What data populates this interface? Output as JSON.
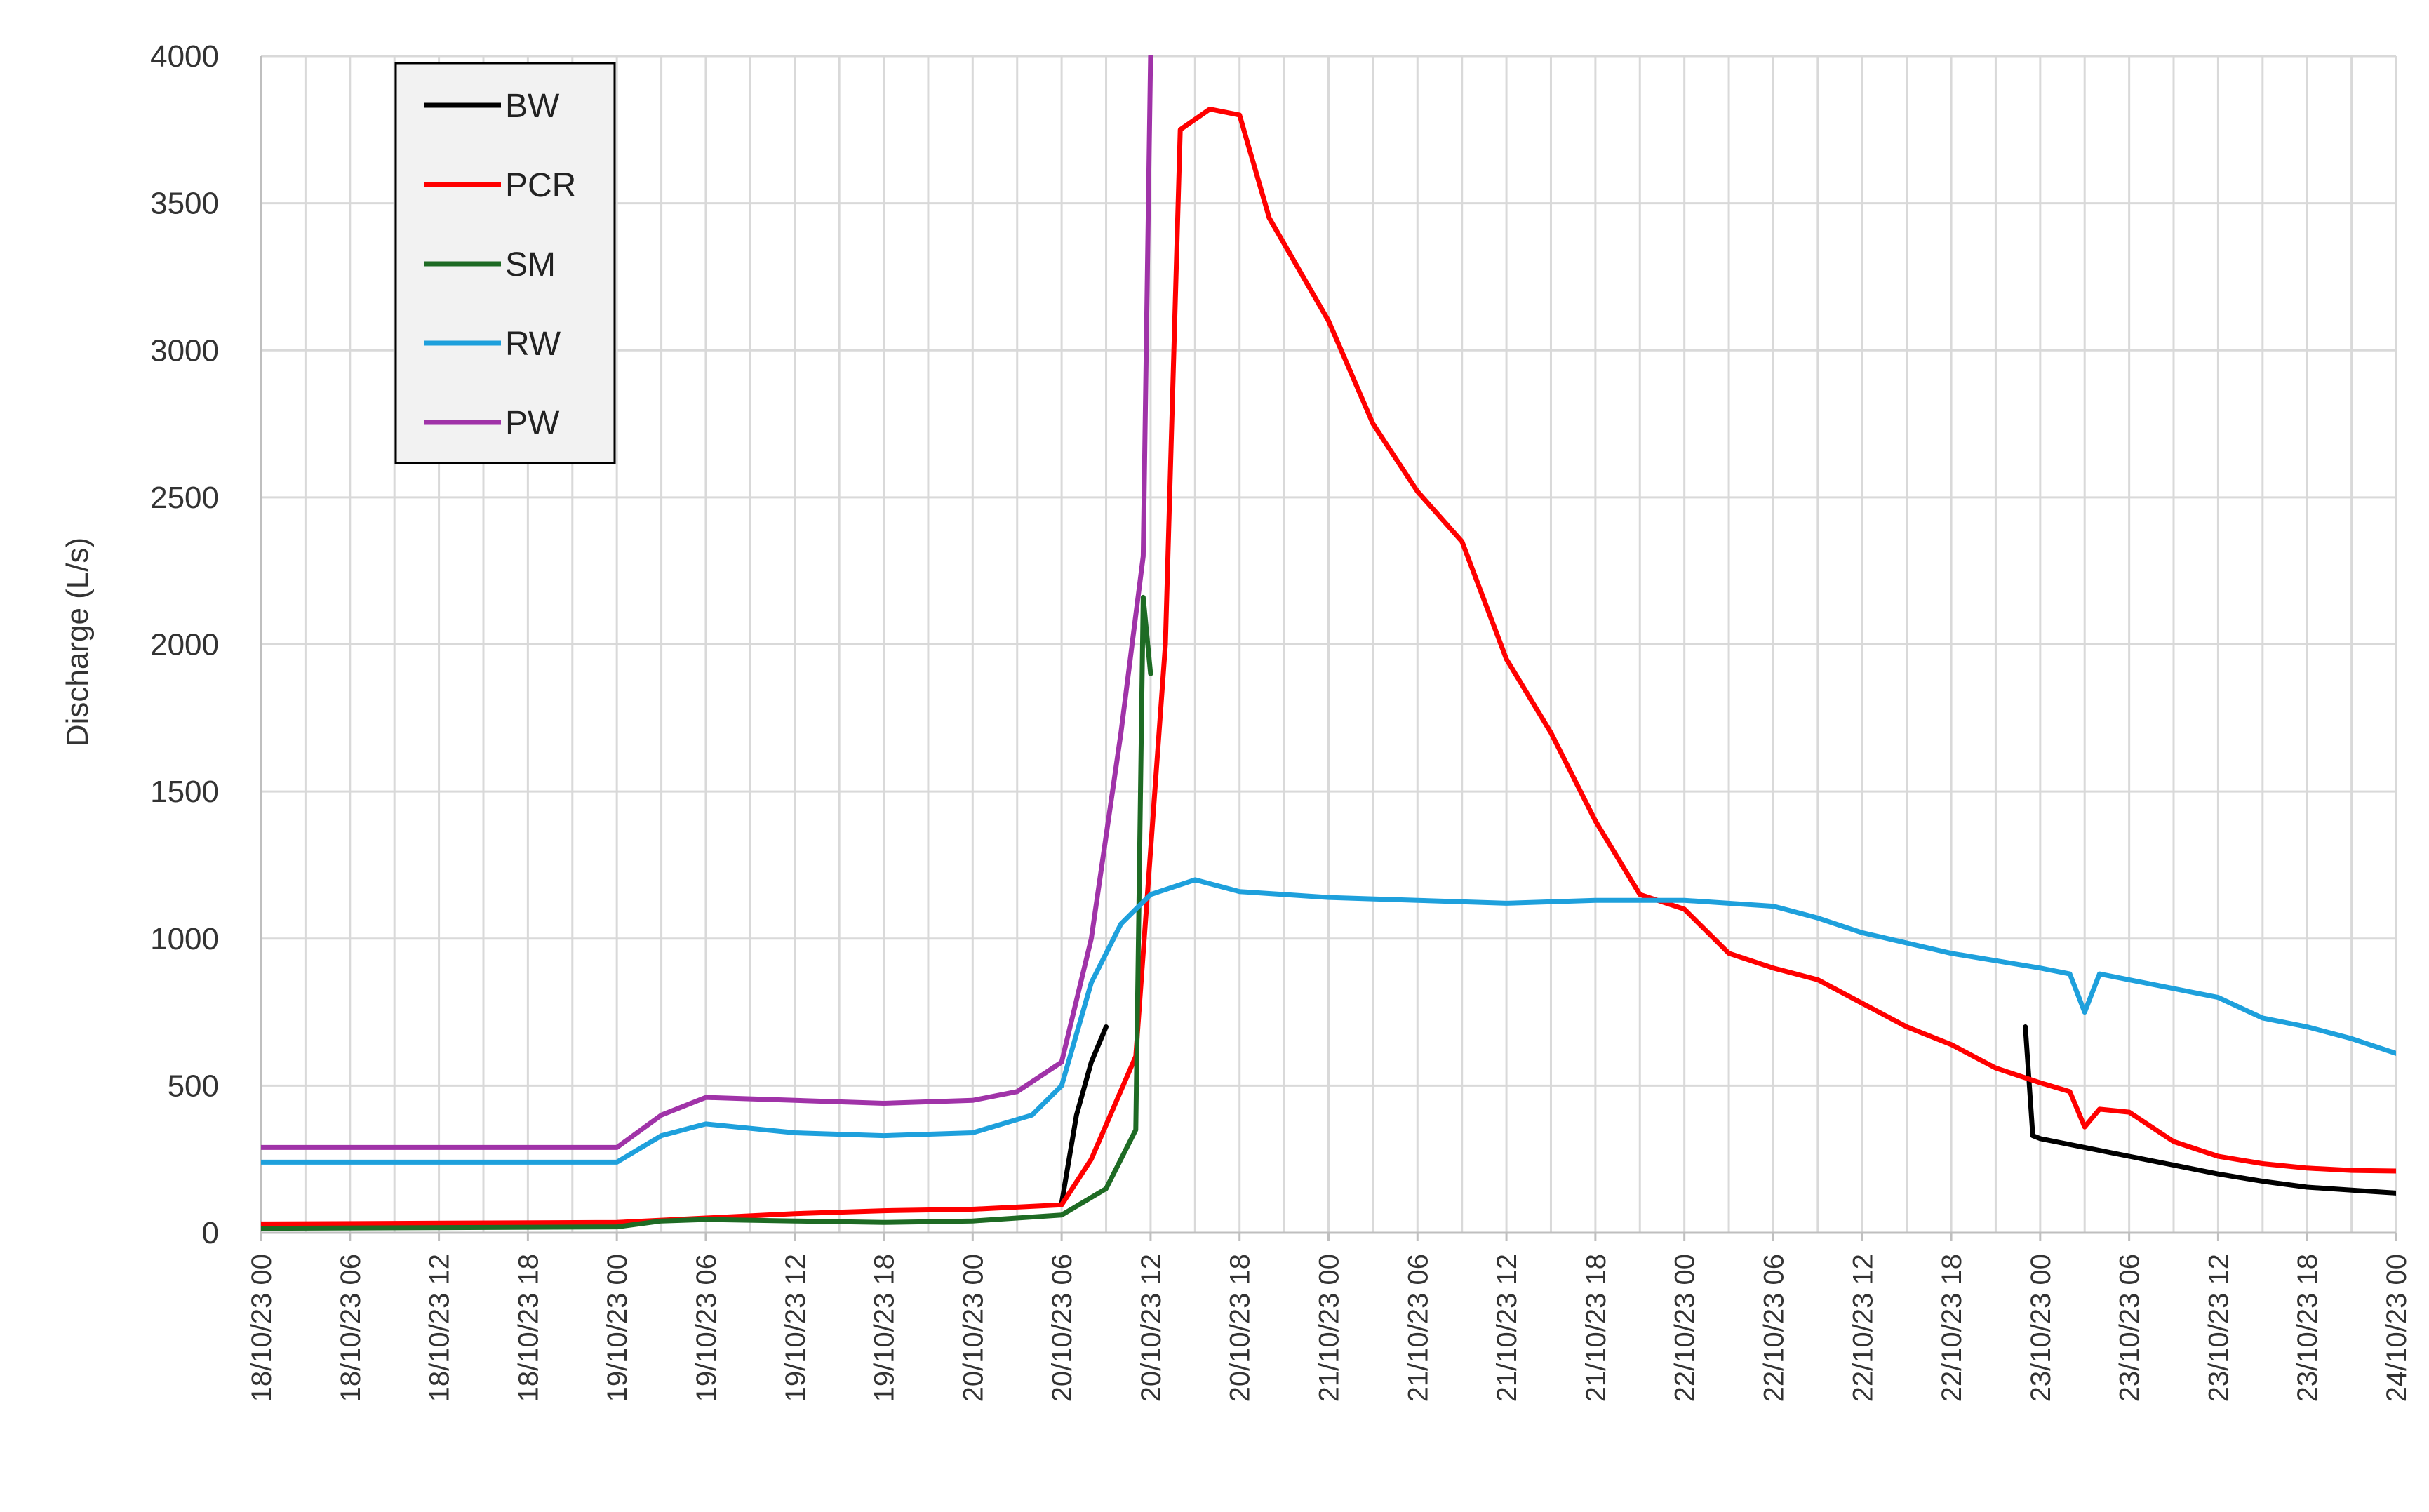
{
  "chart_data": {
    "type": "line",
    "title": "",
    "ylabel": "Discharge (L/s)",
    "xlabel": "",
    "ylim": [
      0,
      4000
    ],
    "yticks": [
      "0",
      "500",
      "1000",
      "1500",
      "2000",
      "2500",
      "3000",
      "3500",
      "4000"
    ],
    "xlim": [
      "18/10/23 00",
      "24/10/23 00"
    ],
    "xticks": [
      "18/10/23 00",
      "18/10/23 06",
      "18/10/23 12",
      "18/10/23 18",
      "19/10/23 00",
      "19/10/23 06",
      "19/10/23 12",
      "19/10/23 18",
      "20/10/23 00",
      "20/10/23 06",
      "20/10/23 12",
      "20/10/23 18",
      "21/10/23 00",
      "21/10/23 06",
      "21/10/23 12",
      "21/10/23 18",
      "22/10/23 00",
      "22/10/23 06",
      "22/10/23 12",
      "22/10/23 18",
      "23/10/23 00",
      "23/10/23 06",
      "23/10/23 12",
      "23/10/23 18",
      "24/10/23 00"
    ],
    "grid": true,
    "legend_position": "top-left",
    "series": [
      {
        "name": "BW",
        "color": "#000000",
        "segments": [
          [
            [
              "20/10/23 06",
              100
            ],
            [
              "20/10/23 07",
              400
            ],
            [
              "20/10/23 08",
              580
            ],
            [
              "20/10/23 09",
              700
            ]
          ],
          [
            [
              "22/10/23 23",
              700
            ],
            [
              "22/10/23 23:30",
              330
            ],
            [
              "23/10/23 00",
              320
            ],
            [
              "23/10/23 03",
              290
            ],
            [
              "23/10/23 06",
              260
            ],
            [
              "23/10/23 09",
              230
            ],
            [
              "23/10/23 12",
              200
            ],
            [
              "23/10/23 15",
              175
            ],
            [
              "23/10/23 18",
              155
            ],
            [
              "23/10/23 21",
              145
            ],
            [
              "24/10/23 00",
              135
            ]
          ]
        ]
      },
      {
        "name": "PCR",
        "color": "#ff0000",
        "segments": [
          [
            [
              "18/10/23 00",
              30
            ],
            [
              "19/10/23 00",
              35
            ],
            [
              "19/10/23 06",
              50
            ],
            [
              "19/10/23 12",
              65
            ],
            [
              "19/10/23 18",
              75
            ],
            [
              "20/10/23 00",
              80
            ],
            [
              "20/10/23 06",
              95
            ],
            [
              "20/10/23 08",
              250
            ],
            [
              "20/10/23 11",
              600
            ],
            [
              "20/10/23 13",
              2000
            ],
            [
              "20/10/23 14",
              3750
            ],
            [
              "20/10/23 16",
              3820
            ],
            [
              "20/10/23 18",
              3800
            ],
            [
              "20/10/23 20",
              3450
            ],
            [
              "21/10/23 00",
              3100
            ],
            [
              "21/10/23 03",
              2750
            ],
            [
              "21/10/23 06",
              2520
            ],
            [
              "21/10/23 09",
              2350
            ],
            [
              "21/10/23 12",
              1950
            ],
            [
              "21/10/23 15",
              1700
            ],
            [
              "21/10/23 18",
              1400
            ],
            [
              "21/10/23 21",
              1150
            ],
            [
              "22/10/23 00",
              1100
            ],
            [
              "22/10/23 03",
              950
            ],
            [
              "22/10/23 06",
              900
            ],
            [
              "22/10/23 09",
              860
            ],
            [
              "22/10/23 12",
              780
            ],
            [
              "22/10/23 15",
              700
            ],
            [
              "22/10/23 18",
              640
            ],
            [
              "22/10/23 21",
              560
            ],
            [
              "23/10/23 00",
              510
            ],
            [
              "23/10/23 02",
              480
            ],
            [
              "23/10/23 03",
              360
            ],
            [
              "23/10/23 04",
              420
            ],
            [
              "23/10/23 06",
              410
            ],
            [
              "23/10/23 09",
              310
            ],
            [
              "23/10/23 12",
              260
            ],
            [
              "23/10/23 15",
              235
            ],
            [
              "23/10/23 18",
              220
            ],
            [
              "23/10/23 21",
              212
            ],
            [
              "24/10/23 00",
              210
            ]
          ]
        ]
      },
      {
        "name": "SM",
        "color": "#1e6b24",
        "segments": [
          [
            [
              "18/10/23 00",
              15
            ],
            [
              "19/10/23 00",
              20
            ],
            [
              "19/10/23 03",
              40
            ],
            [
              "19/10/23 06",
              45
            ],
            [
              "19/10/23 12",
              40
            ],
            [
              "19/10/23 18",
              35
            ],
            [
              "20/10/23 00",
              40
            ],
            [
              "20/10/23 06",
              60
            ],
            [
              "20/10/23 09",
              150
            ],
            [
              "20/10/23 11",
              350
            ],
            [
              "20/10/23 11:30",
              2160
            ],
            [
              "20/10/23 12",
              1900
            ]
          ]
        ]
      },
      {
        "name": "RW",
        "color": "#1ea0dc",
        "segments": [
          [
            [
              "18/10/23 00",
              240
            ],
            [
              "19/10/23 00",
              240
            ],
            [
              "19/10/23 03",
              330
            ],
            [
              "19/10/23 06",
              370
            ],
            [
              "19/10/23 12",
              340
            ],
            [
              "19/10/23 18",
              330
            ],
            [
              "20/10/23 00",
              340
            ],
            [
              "20/10/23 04",
              400
            ],
            [
              "20/10/23 06",
              500
            ],
            [
              "20/10/23 08",
              850
            ],
            [
              "20/10/23 10",
              1050
            ],
            [
              "20/10/23 12",
              1150
            ],
            [
              "20/10/23 15",
              1200
            ],
            [
              "20/10/23 18",
              1160
            ],
            [
              "21/10/23 00",
              1140
            ],
            [
              "21/10/23 06",
              1130
            ],
            [
              "21/10/23 12",
              1120
            ],
            [
              "21/10/23 18",
              1130
            ],
            [
              "22/10/23 00",
              1130
            ],
            [
              "22/10/23 06",
              1110
            ],
            [
              "22/10/23 09",
              1070
            ],
            [
              "22/10/23 12",
              1020
            ],
            [
              "22/10/23 18",
              950
            ],
            [
              "23/10/23 00",
              900
            ],
            [
              "23/10/23 02",
              880
            ],
            [
              "23/10/23 03",
              750
            ],
            [
              "23/10/23 04",
              880
            ],
            [
              "23/10/23 06",
              860
            ],
            [
              "23/10/23 12",
              800
            ],
            [
              "23/10/23 15",
              730
            ],
            [
              "23/10/23 18",
              700
            ],
            [
              "23/10/23 21",
              660
            ],
            [
              "24/10/23 00",
              610
            ]
          ]
        ]
      },
      {
        "name": "PW",
        "color": "#a033a8",
        "segments": [
          [
            [
              "18/10/23 00",
              290
            ],
            [
              "19/10/23 00",
              290
            ],
            [
              "19/10/23 03",
              400
            ],
            [
              "19/10/23 06",
              460
            ],
            [
              "19/10/23 12",
              450
            ],
            [
              "19/10/23 18",
              440
            ],
            [
              "20/10/23 00",
              450
            ],
            [
              "20/10/23 03",
              480
            ],
            [
              "20/10/23 06",
              580
            ],
            [
              "20/10/23 08",
              1000
            ],
            [
              "20/10/23 10",
              1700
            ],
            [
              "20/10/23 11",
              2100
            ],
            [
              "20/10/23 11:30",
              2300
            ],
            [
              "20/10/23 12",
              4000
            ]
          ]
        ]
      }
    ]
  }
}
